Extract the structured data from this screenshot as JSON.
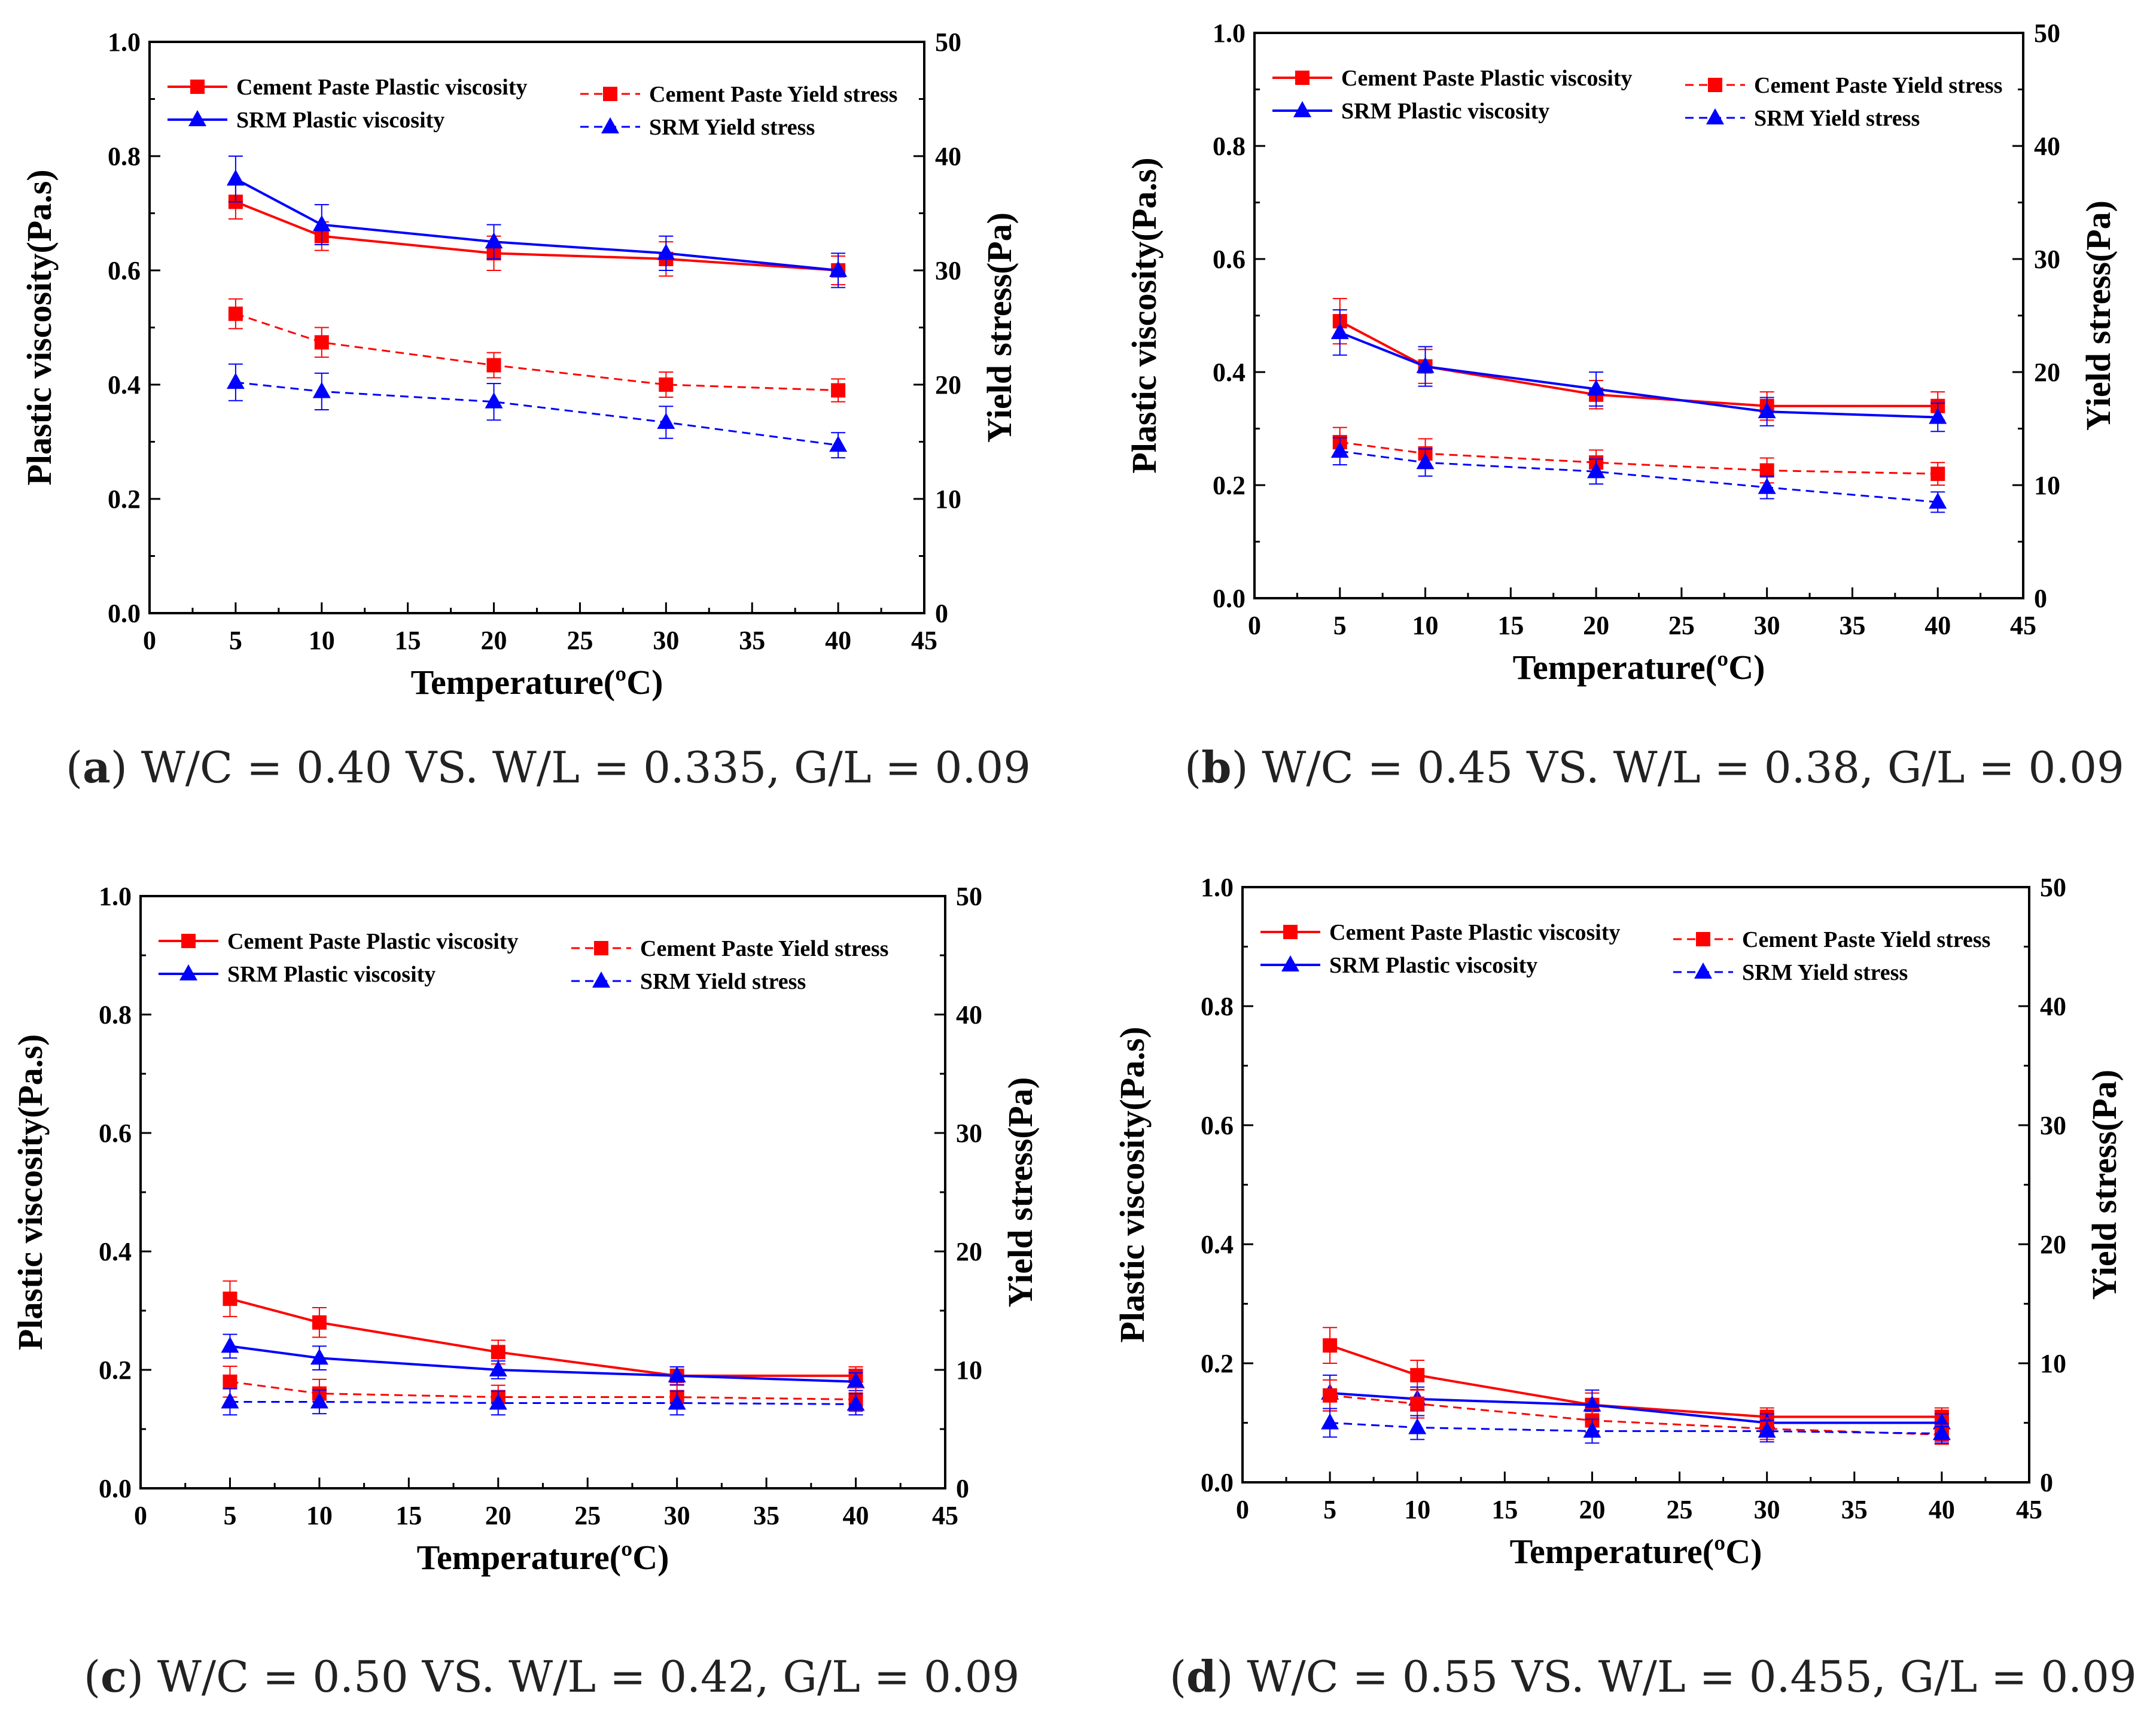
{
  "chart_data": [
    {
      "type": "line",
      "panel": "a",
      "caption_letter": "a",
      "caption_text": "W/C = 0.40 VS. W/L = 0.335, G/L = 0.09",
      "xlabel": "Temperature(ºC)",
      "ylabel": "Plastic viscosity(Pa.s)",
      "y2label": "Yield stress(Pa)",
      "xlim": [
        0,
        45
      ],
      "ylim": [
        0,
        1.0
      ],
      "y2lim": [
        0,
        50
      ],
      "x": [
        5,
        10,
        20,
        30,
        40
      ],
      "x_ticks": [
        "0",
        "5",
        "10",
        "15",
        "20",
        "25",
        "30",
        "35",
        "40",
        "45"
      ],
      "y_ticks": [
        "0.0",
        "0.2",
        "0.4",
        "0.6",
        "0.8",
        "1.0"
      ],
      "y2_ticks": [
        "0",
        "10",
        "20",
        "30",
        "40",
        "50"
      ],
      "series": [
        {
          "name": "Cement Paste Plastic viscosity",
          "axis": "left",
          "color": "#ff0000",
          "marker": "square",
          "dashed": false,
          "values": [
            0.72,
            0.66,
            0.63,
            0.62,
            0.6
          ],
          "errors": [
            0.03,
            0.025,
            0.03,
            0.03,
            0.025
          ]
        },
        {
          "name": "SRM Plastic viscosity",
          "axis": "left",
          "color": "#0000ff",
          "marker": "triangle",
          "dashed": false,
          "values": [
            0.76,
            0.68,
            0.65,
            0.63,
            0.6
          ],
          "errors": [
            0.04,
            0.035,
            0.03,
            0.03,
            0.03
          ]
        },
        {
          "name": "Cement Paste Yield stress",
          "axis": "right",
          "color": "#ff0000",
          "marker": "square",
          "dashed": true,
          "values": [
            26.2,
            23.7,
            21.7,
            20.0,
            19.5
          ],
          "errors": [
            1.3,
            1.3,
            1.1,
            1.1,
            1.0
          ]
        },
        {
          "name": "SRM Yield stress",
          "axis": "right",
          "color": "#0000ff",
          "marker": "triangle",
          "dashed": true,
          "values": [
            20.2,
            19.4,
            18.5,
            16.7,
            14.7
          ],
          "errors": [
            1.6,
            1.6,
            1.6,
            1.4,
            1.1
          ]
        }
      ]
    },
    {
      "type": "line",
      "panel": "b",
      "caption_letter": "b",
      "caption_text": "W/C = 0.45 VS. W/L = 0.38, G/L = 0.09",
      "xlabel": "Temperature(ºC)",
      "ylabel": "Plastic viscosity(Pa.s)",
      "y2label": "Yield stress(Pa)",
      "xlim": [
        0,
        45
      ],
      "ylim": [
        0,
        1.0
      ],
      "y2lim": [
        0,
        50
      ],
      "x": [
        5,
        10,
        20,
        30,
        40
      ],
      "x_ticks": [
        "0",
        "5",
        "10",
        "15",
        "20",
        "25",
        "30",
        "35",
        "40",
        "45"
      ],
      "y_ticks": [
        "0.0",
        "0.2",
        "0.4",
        "0.6",
        "0.8",
        "1.0"
      ],
      "y2_ticks": [
        "0",
        "10",
        "20",
        "30",
        "40",
        "50"
      ],
      "series": [
        {
          "name": "Cement Paste Plastic viscosity",
          "axis": "left",
          "color": "#ff0000",
          "marker": "square",
          "dashed": false,
          "values": [
            0.49,
            0.41,
            0.36,
            0.34,
            0.34
          ],
          "errors": [
            0.04,
            0.03,
            0.025,
            0.025,
            0.025
          ]
        },
        {
          "name": "SRM Plastic viscosity",
          "axis": "left",
          "color": "#0000ff",
          "marker": "triangle",
          "dashed": false,
          "values": [
            0.47,
            0.41,
            0.37,
            0.33,
            0.32
          ],
          "errors": [
            0.04,
            0.035,
            0.03,
            0.025,
            0.025
          ]
        },
        {
          "name": "Cement Paste Yield stress",
          "axis": "right",
          "color": "#ff0000",
          "marker": "square",
          "dashed": true,
          "values": [
            13.8,
            12.8,
            12.0,
            11.3,
            11.0
          ],
          "errors": [
            1.3,
            1.3,
            1.1,
            1.1,
            1.0
          ]
        },
        {
          "name": "SRM Yield stress",
          "axis": "right",
          "color": "#0000ff",
          "marker": "triangle",
          "dashed": true,
          "values": [
            13.0,
            12.0,
            11.2,
            9.8,
            8.5
          ],
          "errors": [
            1.2,
            1.2,
            1.1,
            1.0,
            0.9
          ]
        }
      ]
    },
    {
      "type": "line",
      "panel": "c",
      "caption_letter": "c",
      "caption_text": "W/C = 0.50 VS. W/L = 0.42, G/L = 0.09",
      "xlabel": "Temperature(ºC)",
      "ylabel": "Plastic viscosity(Pa.s)",
      "y2label": "Yield stress(Pa)",
      "xlim": [
        0,
        45
      ],
      "ylim": [
        0,
        1.0
      ],
      "y2lim": [
        0,
        50
      ],
      "x": [
        5,
        10,
        20,
        30,
        40
      ],
      "x_ticks": [
        "0",
        "5",
        "10",
        "15",
        "20",
        "25",
        "30",
        "35",
        "40",
        "45"
      ],
      "y_ticks": [
        "0.0",
        "0.2",
        "0.4",
        "0.6",
        "0.8",
        "1.0"
      ],
      "y2_ticks": [
        "0",
        "10",
        "20",
        "30",
        "40",
        "50"
      ],
      "series": [
        {
          "name": "Cement Paste Plastic viscosity",
          "axis": "left",
          "color": "#ff0000",
          "marker": "square",
          "dashed": false,
          "values": [
            0.32,
            0.28,
            0.23,
            0.19,
            0.19
          ],
          "errors": [
            0.03,
            0.025,
            0.02,
            0.015,
            0.015
          ]
        },
        {
          "name": "SRM Plastic viscosity",
          "axis": "left",
          "color": "#0000ff",
          "marker": "triangle",
          "dashed": false,
          "values": [
            0.24,
            0.22,
            0.2,
            0.19,
            0.18
          ],
          "errors": [
            0.02,
            0.02,
            0.015,
            0.015,
            0.015
          ]
        },
        {
          "name": "Cement Paste Yield stress",
          "axis": "right",
          "color": "#ff0000",
          "marker": "square",
          "dashed": true,
          "values": [
            9.0,
            8.0,
            7.7,
            7.7,
            7.5
          ],
          "errors": [
            1.3,
            1.2,
            1.0,
            1.0,
            1.0
          ]
        },
        {
          "name": "SRM Yield stress",
          "axis": "right",
          "color": "#0000ff",
          "marker": "triangle",
          "dashed": true,
          "values": [
            7.3,
            7.3,
            7.2,
            7.2,
            7.1
          ],
          "errors": [
            1.1,
            1.0,
            1.0,
            1.0,
            0.9
          ]
        }
      ]
    },
    {
      "type": "line",
      "panel": "d",
      "caption_letter": "d",
      "caption_text": "W/C = 0.55 VS. W/L = 0.455, G/L = 0.09",
      "xlabel": "Temperature(ºC)",
      "ylabel": "Plastic viscosity(Pa.s)",
      "y2label": "Yield stress(Pa)",
      "xlim": [
        0,
        45
      ],
      "ylim": [
        0,
        1.0
      ],
      "y2lim": [
        0,
        50
      ],
      "x": [
        5,
        10,
        20,
        30,
        40
      ],
      "x_ticks": [
        "0",
        "5",
        "10",
        "15",
        "20",
        "25",
        "30",
        "35",
        "40",
        "45"
      ],
      "y_ticks": [
        "0.0",
        "0.2",
        "0.4",
        "0.6",
        "0.8",
        "1.0"
      ],
      "y2_ticks": [
        "0",
        "10",
        "20",
        "30",
        "40",
        "50"
      ],
      "series": [
        {
          "name": "Cement Paste Plastic viscosity",
          "axis": "left",
          "color": "#ff0000",
          "marker": "square",
          "dashed": false,
          "values": [
            0.23,
            0.18,
            0.13,
            0.11,
            0.11
          ],
          "errors": [
            0.03,
            0.025,
            0.02,
            0.015,
            0.015
          ]
        },
        {
          "name": "SRM Plastic viscosity",
          "axis": "left",
          "color": "#0000ff",
          "marker": "triangle",
          "dashed": false,
          "values": [
            0.15,
            0.14,
            0.13,
            0.1,
            0.1
          ],
          "errors": [
            0.03,
            0.02,
            0.025,
            0.015,
            0.015
          ]
        },
        {
          "name": "Cement Paste Yield stress",
          "axis": "right",
          "color": "#ff0000",
          "marker": "square",
          "dashed": true,
          "values": [
            7.3,
            6.6,
            5.2,
            4.5,
            4.0
          ],
          "errors": [
            1.3,
            1.2,
            1.0,
            0.9,
            0.8
          ]
        },
        {
          "name": "SRM Yield stress",
          "axis": "right",
          "color": "#0000ff",
          "marker": "triangle",
          "dashed": true,
          "values": [
            5.0,
            4.6,
            4.3,
            4.3,
            4.1
          ],
          "errors": [
            1.2,
            1.0,
            1.0,
            0.9,
            0.8
          ]
        }
      ]
    }
  ]
}
